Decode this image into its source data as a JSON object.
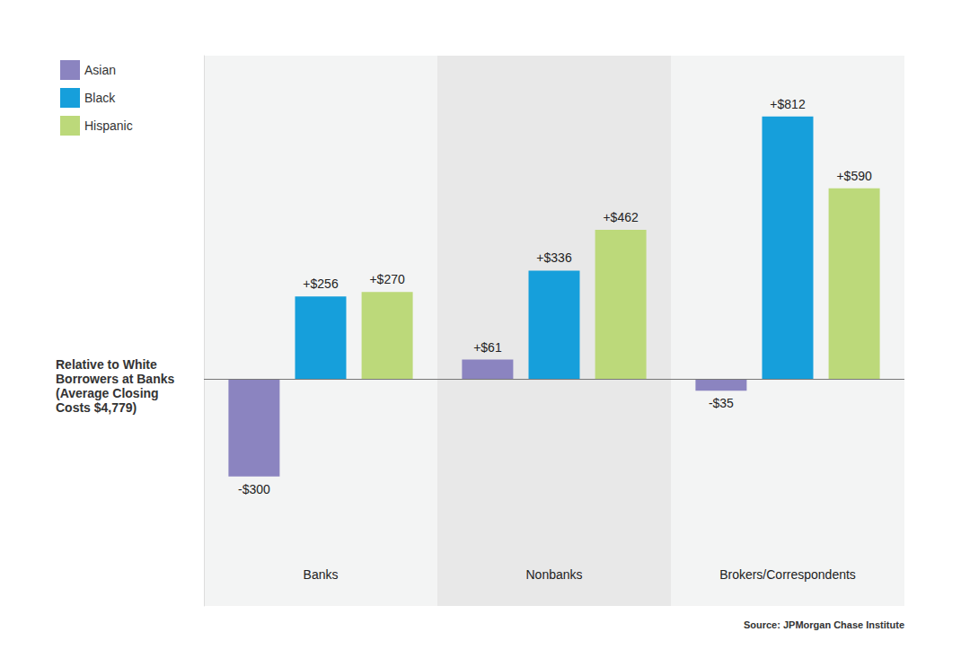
{
  "chart_data": {
    "type": "bar",
    "categories": [
      "Banks",
      "Nonbanks",
      "Brokers/Correspondents"
    ],
    "series": [
      {
        "name": "Asian",
        "color": "#8b84c0",
        "values": [
          -300,
          61,
          -35
        ],
        "value_labels": [
          "-$300",
          "+$61",
          "-$35"
        ]
      },
      {
        "name": "Black",
        "color": "#169fdb",
        "values": [
          256,
          336,
          812
        ],
        "value_labels": [
          "+$256",
          "+$336",
          "+$812"
        ]
      },
      {
        "name": "Hispanic",
        "color": "#bcd97a",
        "values": [
          270,
          462,
          590
        ],
        "value_labels": [
          "+$270",
          "+$462",
          "+$590"
        ]
      }
    ],
    "ylim": [
      -700,
      1000
    ],
    "yticks": [
      0
    ],
    "grid": true,
    "legend": "top-left",
    "data_labels": true,
    "tick_labels": "x",
    "y_label": "Relative to White Borrowers at Banks (Average Closing Costs $4,779)",
    "source": "Source: JPMorgan Chase Institute"
  }
}
